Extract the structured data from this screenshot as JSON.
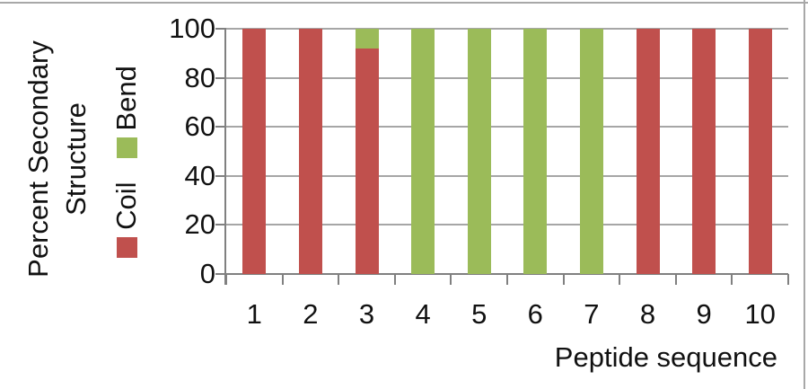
{
  "chart_data": {
    "type": "bar",
    "stacked": true,
    "orientation": "vertical",
    "categories": [
      "1",
      "2",
      "3",
      "4",
      "5",
      "6",
      "7",
      "8",
      "9",
      "10"
    ],
    "series": [
      {
        "name": "Coil",
        "color": "#C0504D",
        "values": [
          100,
          100,
          92,
          0,
          0,
          0,
          0,
          100,
          100,
          100
        ]
      },
      {
        "name": "Bend",
        "color": "#9BBB59",
        "values": [
          0,
          0,
          8,
          100,
          100,
          100,
          100,
          0,
          0,
          0
        ]
      }
    ],
    "xlabel": "Peptide sequence",
    "ylabel": "Percent Secondary Structure",
    "ylabel_lines": [
      "Percent Secondary",
      "Structure"
    ],
    "ylim": [
      0,
      100
    ],
    "yticks": [
      0,
      20,
      40,
      60,
      80,
      100
    ],
    "grid": true,
    "legend_position": "left-rotated",
    "legend": [
      {
        "label": "Coil",
        "color": "#C0504D"
      },
      {
        "label": "Bend",
        "color": "#9BBB59"
      }
    ],
    "colors": {
      "coil": "#C0504D",
      "bend": "#9BBB59",
      "axis": "#808080",
      "gridline": "#A6A6A6",
      "frame": "#A8A8A8"
    }
  }
}
